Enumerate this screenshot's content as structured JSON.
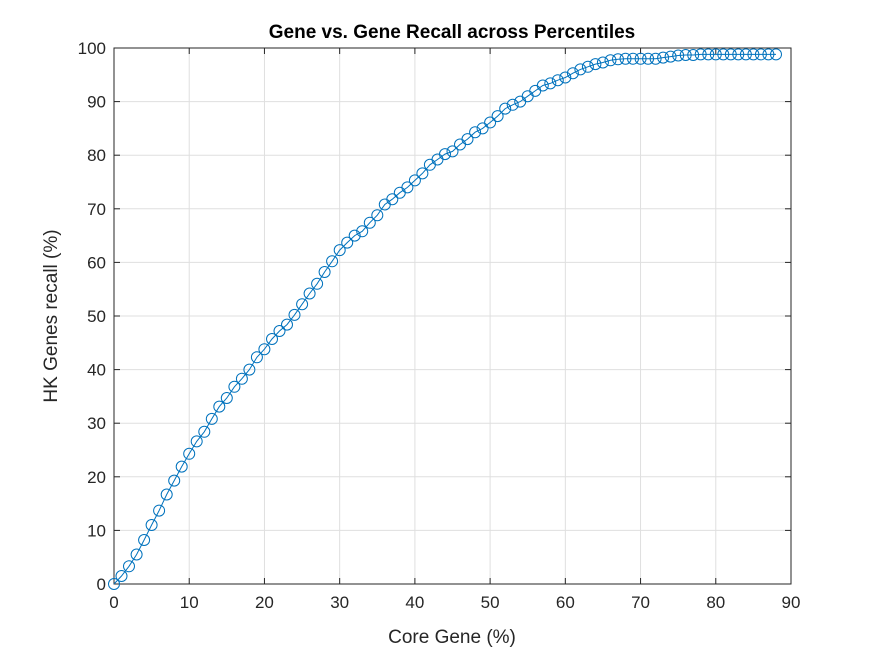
{
  "chart_data": {
    "type": "line",
    "title": "Gene vs. Gene Recall across Percentiles",
    "xlabel": "Core Gene (%)",
    "ylabel": "HK Genes recall (%)",
    "xlim": [
      0,
      90
    ],
    "ylim": [
      0,
      100
    ],
    "xticks": [
      0,
      10,
      20,
      30,
      40,
      50,
      60,
      70,
      80,
      90
    ],
    "yticks": [
      0,
      10,
      20,
      30,
      40,
      50,
      60,
      70,
      80,
      90,
      100
    ],
    "grid": true,
    "marker": "circle",
    "color": "#0072BD",
    "series": [
      {
        "x": [
          0,
          1,
          2,
          3,
          4,
          5,
          6,
          7,
          8,
          9,
          10,
          11,
          12,
          13,
          14,
          15,
          16,
          17,
          18,
          19,
          20,
          21,
          22,
          23,
          24,
          25,
          26,
          27,
          28,
          29,
          30,
          31,
          32,
          33,
          34,
          35,
          36,
          37,
          38,
          39,
          40,
          41,
          42,
          43,
          44,
          45,
          46,
          47,
          48,
          49,
          50,
          51,
          52,
          53,
          54,
          55,
          56,
          57,
          58,
          59,
          60,
          61,
          62,
          63,
          64,
          65,
          66,
          67,
          68,
          69,
          70,
          71,
          72,
          73,
          74,
          75,
          76,
          77,
          78,
          79,
          80,
          81,
          82,
          83,
          84,
          85,
          86,
          87,
          88
        ],
        "y": [
          0,
          1.5,
          3.3,
          5.5,
          8.2,
          11,
          13.7,
          16.7,
          19.3,
          21.9,
          24.3,
          26.6,
          28.4,
          30.8,
          33.1,
          34.7,
          36.8,
          38.3,
          40,
          42.3,
          43.8,
          45.7,
          47.2,
          48.4,
          50.2,
          52.2,
          54.2,
          56,
          58.2,
          60.2,
          62.3,
          63.7,
          65,
          65.8,
          67.4,
          68.8,
          70.8,
          71.8,
          73,
          74,
          75.3,
          76.6,
          78.2,
          79.2,
          80.2,
          80.7,
          82,
          83,
          84.3,
          85,
          86.1,
          87.3,
          88.7,
          89.4,
          90,
          91,
          92,
          93,
          93.4,
          94,
          94.5,
          95.3,
          96,
          96.5,
          97,
          97.3,
          97.7,
          97.9,
          98,
          98,
          98,
          98,
          98,
          98.2,
          98.4,
          98.6,
          98.7,
          98.7,
          98.8,
          98.8,
          98.8,
          98.8,
          98.8,
          98.8,
          98.8,
          98.8,
          98.8,
          98.8,
          98.8
        ]
      }
    ]
  }
}
